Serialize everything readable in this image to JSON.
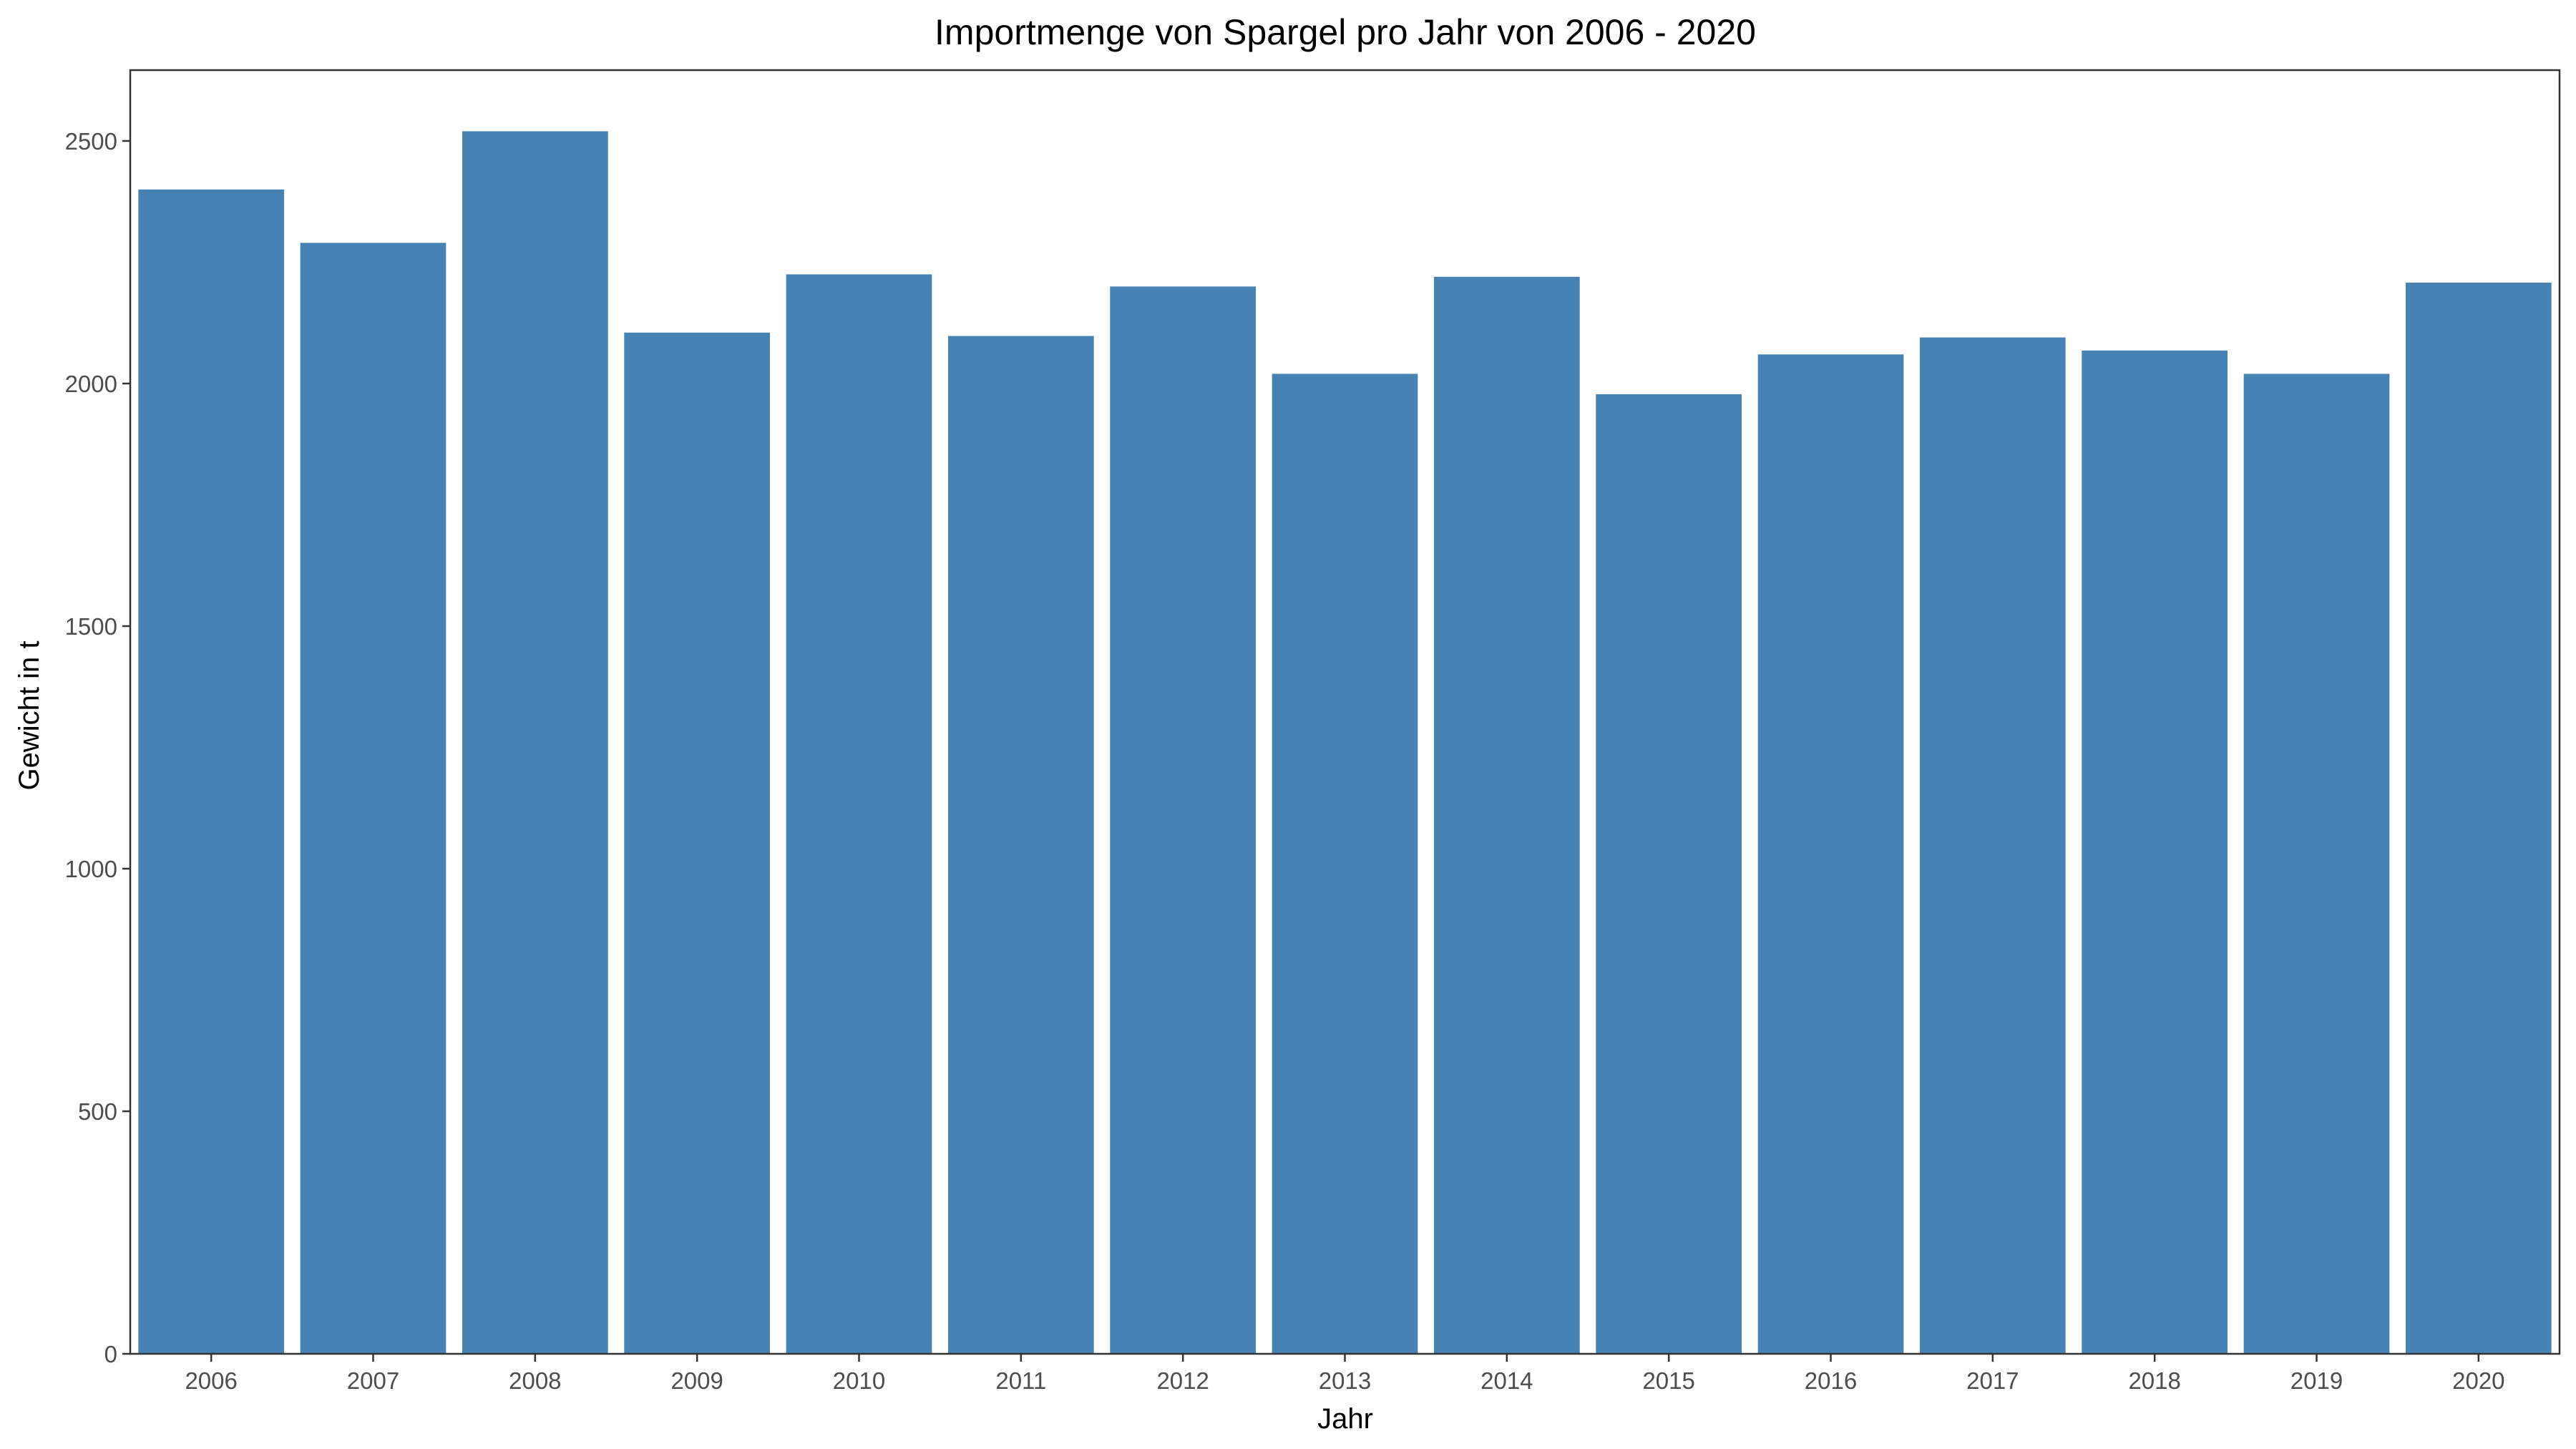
{
  "colors": {
    "bar": "#4682b4",
    "axis": "#333333",
    "tick_text": "#4d4d4d",
    "background": "#ffffff"
  },
  "chart_data": {
    "type": "bar",
    "title": "Importmenge von Spargel pro Jahr von 2006 - 2020",
    "xlabel": "Jahr",
    "ylabel": "Gewicht in t",
    "categories": [
      "2006",
      "2007",
      "2008",
      "2009",
      "2010",
      "2011",
      "2012",
      "2013",
      "2014",
      "2015",
      "2016",
      "2017",
      "2018",
      "2019",
      "2020"
    ],
    "values": [
      2400,
      2290,
      2520,
      2105,
      2225,
      2098,
      2200,
      2020,
      2220,
      1978,
      2060,
      2095,
      2068,
      2020,
      2208
    ],
    "ylim": [
      0,
      2646
    ],
    "yticks": [
      0,
      500,
      1000,
      1500,
      2000,
      2500
    ],
    "grid": false
  }
}
